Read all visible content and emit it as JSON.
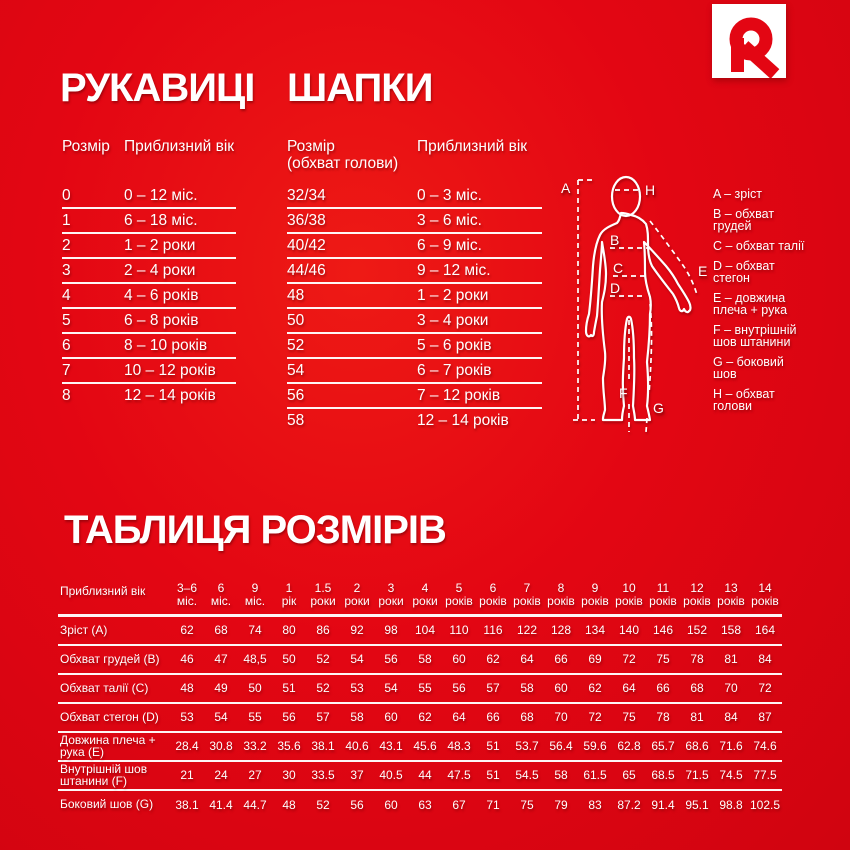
{
  "colors": {
    "background": "#e30613",
    "text": "#ffffff",
    "logo_red": "#e30613",
    "logo_box": "#ffffff"
  },
  "sections": {
    "mittens": {
      "title": "РУКАВИЦІ",
      "columns": [
        "Розмір",
        "Приблизний вік"
      ],
      "rows": [
        [
          "0",
          "0 – 12 міс."
        ],
        [
          "1",
          "6 – 18 міс."
        ],
        [
          "2",
          "1 – 2 роки"
        ],
        [
          "3",
          "2 – 4 роки"
        ],
        [
          "4",
          "4 – 6 років"
        ],
        [
          "5",
          "6 – 8 років"
        ],
        [
          "6",
          "8 – 10 років"
        ],
        [
          "7",
          "10 – 12 років"
        ],
        [
          "8",
          "12 – 14 років"
        ]
      ]
    },
    "hats": {
      "title": "ШАПКИ",
      "columns": [
        "Розмір\n(обхват голови)",
        "Приблизний вік"
      ],
      "rows": [
        [
          "32/34",
          "0 – 3 міс."
        ],
        [
          "36/38",
          "3 – 6 міс."
        ],
        [
          "40/42",
          "6 – 9 міс."
        ],
        [
          "44/46",
          "9 – 12 міс."
        ],
        [
          "48",
          "1 – 2 роки"
        ],
        [
          "50",
          "3 – 4 роки"
        ],
        [
          "52",
          "5 – 6 років"
        ],
        [
          "54",
          "6 – 7 років"
        ],
        [
          "56",
          "7 – 12 років"
        ],
        [
          "58",
          "12 – 14 років"
        ]
      ]
    },
    "figure": {
      "labels": [
        "A",
        "B",
        "C",
        "D",
        "E",
        "F",
        "G",
        "H"
      ],
      "legend": [
        "A – зріст",
        "B – обхват грудей",
        "C – обхват талії",
        "D – обхват стегон",
        "E – довжина плеча + рука",
        "F – внутрішній шов штанини",
        "G – боковий шов",
        "H – обхват голови"
      ]
    },
    "size_table": {
      "title": "ТАБЛИЦЯ РОЗМІРІВ",
      "header_label": "Приблизний вік",
      "age_columns": [
        [
          "3–6",
          "міс."
        ],
        [
          "6",
          "міс."
        ],
        [
          "9",
          "міс."
        ],
        [
          "1",
          "рік"
        ],
        [
          "1.5",
          "роки"
        ],
        [
          "2",
          "роки"
        ],
        [
          "3",
          "роки"
        ],
        [
          "4",
          "роки"
        ],
        [
          "5",
          "років"
        ],
        [
          "6",
          "років"
        ],
        [
          "7",
          "років"
        ],
        [
          "8",
          "років"
        ],
        [
          "9",
          "років"
        ],
        [
          "10",
          "років"
        ],
        [
          "11",
          "років"
        ],
        [
          "12",
          "років"
        ],
        [
          "13",
          "років"
        ],
        [
          "14",
          "років"
        ]
      ],
      "rows": [
        {
          "label": "Зріст (A)",
          "values": [
            "62",
            "68",
            "74",
            "80",
            "86",
            "92",
            "98",
            "104",
            "110",
            "116",
            "122",
            "128",
            "134",
            "140",
            "146",
            "152",
            "158",
            "164"
          ]
        },
        {
          "label": "Обхват грудей (B)",
          "values": [
            "46",
            "47",
            "48,5",
            "50",
            "52",
            "54",
            "56",
            "58",
            "60",
            "62",
            "64",
            "66",
            "69",
            "72",
            "75",
            "78",
            "81",
            "84"
          ]
        },
        {
          "label": "Обхват талії (C)",
          "values": [
            "48",
            "49",
            "50",
            "51",
            "52",
            "53",
            "54",
            "55",
            "56",
            "57",
            "58",
            "60",
            "62",
            "64",
            "66",
            "68",
            "70",
            "72"
          ]
        },
        {
          "label": "Обхват стегон (D)",
          "values": [
            "53",
            "54",
            "55",
            "56",
            "57",
            "58",
            "60",
            "62",
            "64",
            "66",
            "68",
            "70",
            "72",
            "75",
            "78",
            "81",
            "84",
            "87"
          ]
        },
        {
          "label": "Довжина плеча + рука (E)",
          "values": [
            "28.4",
            "30.8",
            "33.2",
            "35.6",
            "38.1",
            "40.6",
            "43.1",
            "45.6",
            "48.3",
            "51",
            "53.7",
            "56.4",
            "59.6",
            "62.8",
            "65.7",
            "68.6",
            "71.6",
            "74.6"
          ]
        },
        {
          "label": "Внутрішній шов штанини (F)",
          "values": [
            "21",
            "24",
            "27",
            "30",
            "33.5",
            "37",
            "40.5",
            "44",
            "47.5",
            "51",
            "54.5",
            "58",
            "61.5",
            "65",
            "68.5",
            "71.5",
            "74.5",
            "77.5"
          ]
        },
        {
          "label": "Боковий шов (G)",
          "values": [
            "38.1",
            "41.4",
            "44.7",
            "48",
            "52",
            "56",
            "60",
            "63",
            "67",
            "71",
            "75",
            "79",
            "83",
            "87.2",
            "91.4",
            "95.1",
            "98.8",
            "102.5"
          ]
        }
      ]
    }
  }
}
